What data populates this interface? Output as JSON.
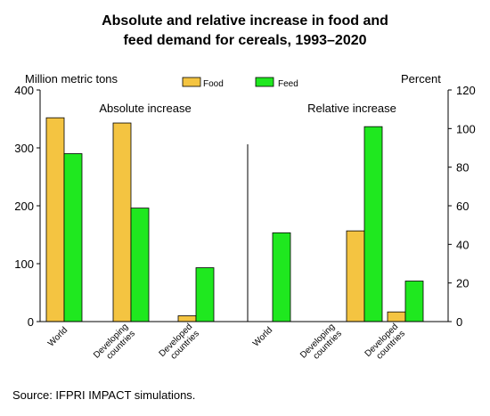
{
  "chart_data": {
    "type": "bar",
    "title_line1": "Absolute and relative increase in food and",
    "title_line2": "feed demand for cereals, 1993–2020",
    "source": "Source:  IFPRI IMPACT simulations.",
    "left_axis": {
      "label": "Million metric tons",
      "ylim": [
        0,
        400
      ],
      "ticks": [
        "0",
        "100",
        "200",
        "300",
        "400"
      ]
    },
    "right_axis": {
      "label": "Percent",
      "ylim": [
        0,
        120
      ],
      "ticks": [
        "0",
        "20",
        "40",
        "60",
        "80",
        "100",
        "120"
      ]
    },
    "legend": [
      {
        "name": "Food",
        "color": "#F4C441"
      },
      {
        "name": "Feed",
        "color": "#1FE81F"
      }
    ],
    "panels": [
      {
        "label": "Absolute increase",
        "axis": "left",
        "categories": [
          "World",
          "Developing countries",
          "Developed countries"
        ],
        "series": [
          {
            "name": "Food",
            "values": [
              352,
              343,
              10
            ]
          },
          {
            "name": "Feed",
            "values": [
              290,
              196,
              93
            ]
          }
        ]
      },
      {
        "label": "Relative increase",
        "axis": "right",
        "categories": [
          "World",
          "Developing countries",
          "Developed countries"
        ],
        "series": [
          {
            "name": "Food",
            "values": [
              0,
              47,
              5
            ]
          },
          {
            "name": "Feed",
            "values": [
              46,
              101,
              21
            ]
          }
        ]
      }
    ],
    "grid": false,
    "legend_placement": "top-center"
  }
}
